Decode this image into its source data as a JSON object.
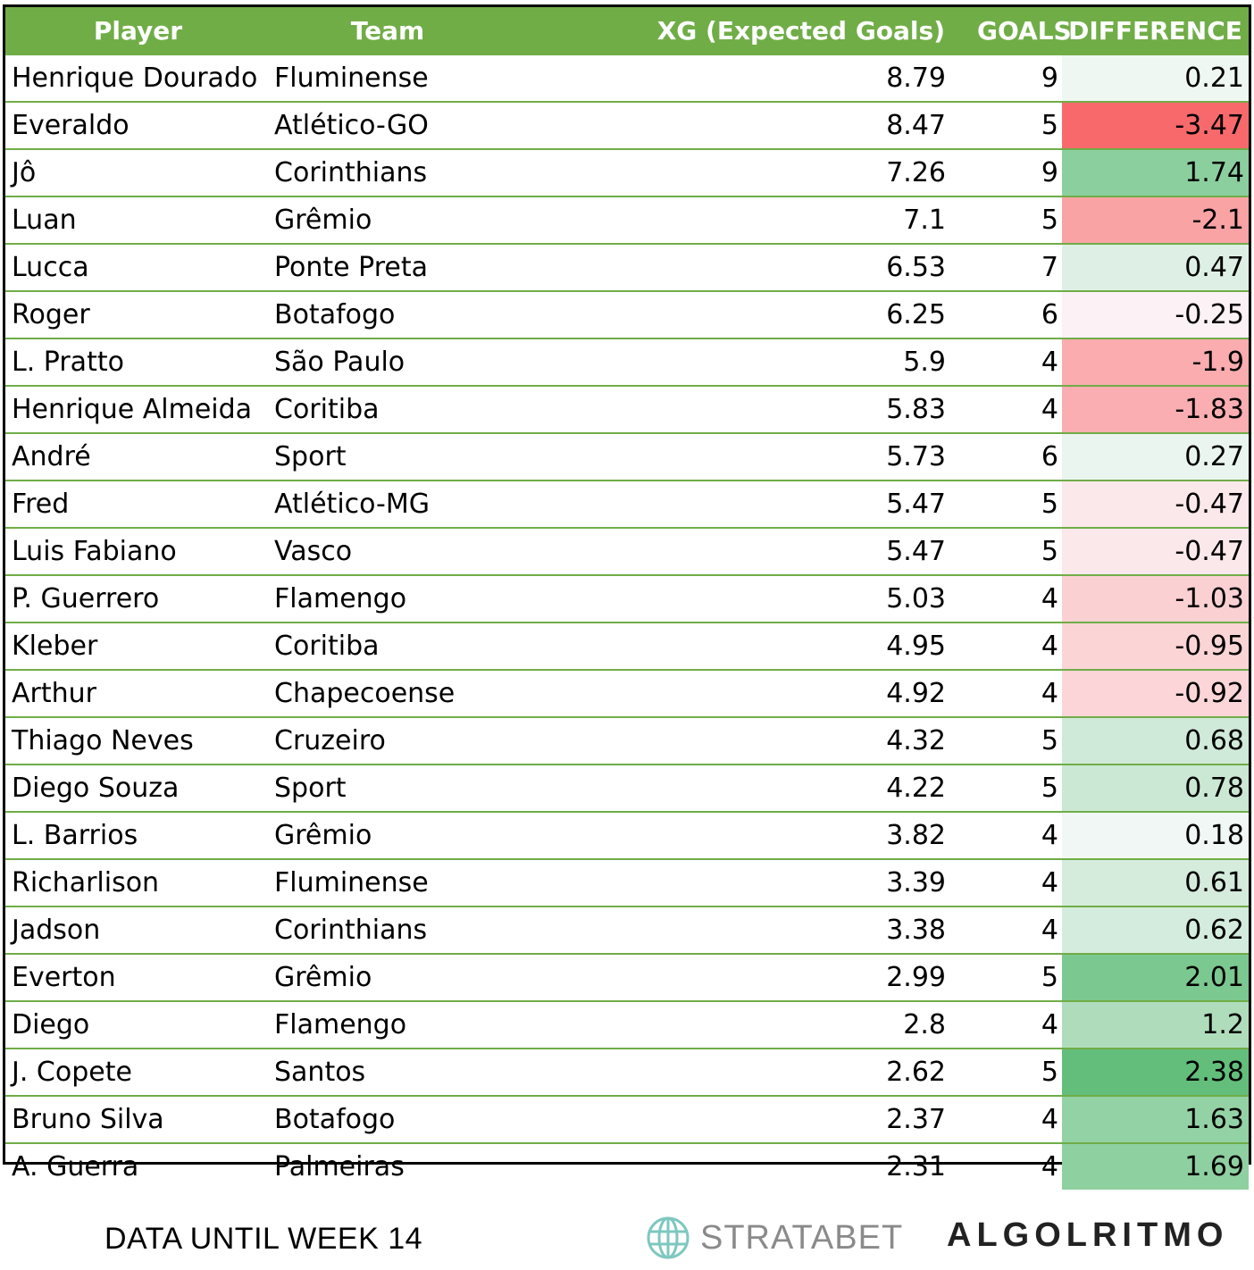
{
  "chart_data": {
    "type": "table",
    "columns": [
      "Player",
      "Team",
      "XG (Expected Goals)",
      "GOALS",
      "DIFFERENCE"
    ],
    "rows": [
      [
        "Henrique Dourado",
        "Fluminense",
        "8.79",
        "9",
        "0.21"
      ],
      [
        "Everaldo",
        "Atlético-GO",
        "8.47",
        "5",
        "-3.47"
      ],
      [
        "Jô",
        "Corinthians",
        "7.26",
        "9",
        "1.74"
      ],
      [
        "Luan",
        "Grêmio",
        "7.1",
        "5",
        "-2.1"
      ],
      [
        "Lucca",
        "Ponte Preta",
        "6.53",
        "7",
        "0.47"
      ],
      [
        "Roger",
        "Botafogo",
        "6.25",
        "6",
        "-0.25"
      ],
      [
        "L. Pratto",
        "São Paulo",
        "5.9",
        "4",
        "-1.9"
      ],
      [
        "Henrique Almeida",
        "Coritiba",
        "5.83",
        "4",
        "-1.83"
      ],
      [
        "André",
        "Sport",
        "5.73",
        "6",
        "0.27"
      ],
      [
        "Fred",
        "Atlético-MG",
        "5.47",
        "5",
        "-0.47"
      ],
      [
        "Luis Fabiano",
        "Vasco",
        "5.47",
        "5",
        "-0.47"
      ],
      [
        "P. Guerrero",
        "Flamengo",
        "5.03",
        "4",
        "-1.03"
      ],
      [
        "Kleber",
        "Coritiba",
        "4.95",
        "4",
        "-0.95"
      ],
      [
        "Arthur",
        "Chapecoense",
        "4.92",
        "4",
        "-0.92"
      ],
      [
        "Thiago Neves",
        "Cruzeiro",
        "4.32",
        "5",
        "0.68"
      ],
      [
        "Diego Souza",
        "Sport",
        "4.22",
        "5",
        "0.78"
      ],
      [
        "L. Barrios",
        "Grêmio",
        "3.82",
        "4",
        "0.18"
      ],
      [
        "Richarlison",
        "Fluminense",
        "3.39",
        "4",
        "0.61"
      ],
      [
        "Jadson",
        "Corinthians",
        "3.38",
        "4",
        "0.62"
      ],
      [
        "Everton",
        "Grêmio",
        "2.99",
        "5",
        "2.01"
      ],
      [
        "Diego",
        "Flamengo",
        "2.8",
        "4",
        "1.2"
      ],
      [
        "J. Copete",
        "Santos",
        "2.62",
        "5",
        "2.38"
      ],
      [
        "Bruno Silva",
        "Botafogo",
        "2.37",
        "4",
        "1.63"
      ],
      [
        "A. Guerra",
        "Palmeiras",
        "2.31",
        "4",
        "1.69"
      ]
    ],
    "header_color": "#70ad47",
    "positive_color": "#63be7b",
    "negative_color": "#f8696b",
    "neutral_color": "#fcfcff"
  },
  "footer": {
    "note": "DATA UNTIL WEEK 14",
    "brand1": "STRATABET",
    "brand2": "ALGOLRITMO"
  }
}
